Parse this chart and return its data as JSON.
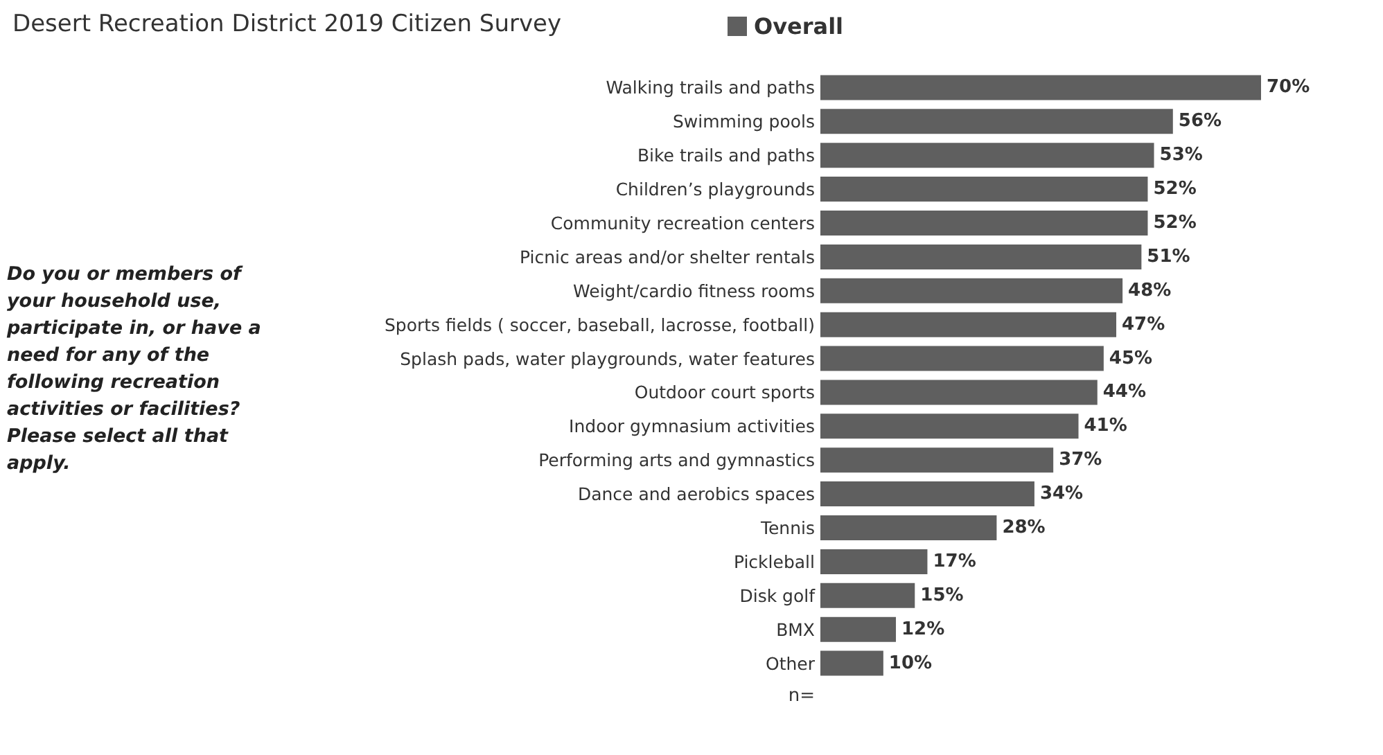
{
  "chart_data": {
    "type": "bar",
    "orientation": "horizontal",
    "title": "Desert Recreation District 2019 Citizen Survey",
    "categories": [
      "Walking trails and paths",
      "Swimming pools",
      "Bike trails and paths",
      "Children’s playgrounds",
      "Community recreation centers",
      "Picnic areas and/or shelter rentals",
      "Weight/cardio fitness rooms",
      "Sports fields ( soccer, baseball, lacrosse, football)",
      "Splash pads, water playgrounds, water features",
      "Outdoor court sports",
      "Indoor gymnasium activities",
      "Performing arts and gymnastics",
      "Dance and aerobics spaces",
      "Tennis",
      "Pickleball",
      "Disk golf",
      "BMX",
      "Other"
    ],
    "series": [
      {
        "name": "Overall",
        "color": "#5f5f5f",
        "values": [
          70,
          56,
          53,
          52,
          52,
          51,
          48,
          47,
          45,
          44,
          41,
          37,
          34,
          28,
          17,
          15,
          12,
          10
        ],
        "value_labels": [
          "70%",
          "56%",
          "53%",
          "52%",
          "52%",
          "51%",
          "48%",
          "47%",
          "45%",
          "44%",
          "41%",
          "37%",
          "34%",
          "28%",
          "17%",
          "15%",
          "12%",
          "10%"
        ]
      }
    ],
    "legend": "top",
    "annotations": [
      "Do you or members of your household use, participate in, or have a need for any of the following recreation activities or facilities? Please select all that apply.",
      "n="
    ]
  }
}
